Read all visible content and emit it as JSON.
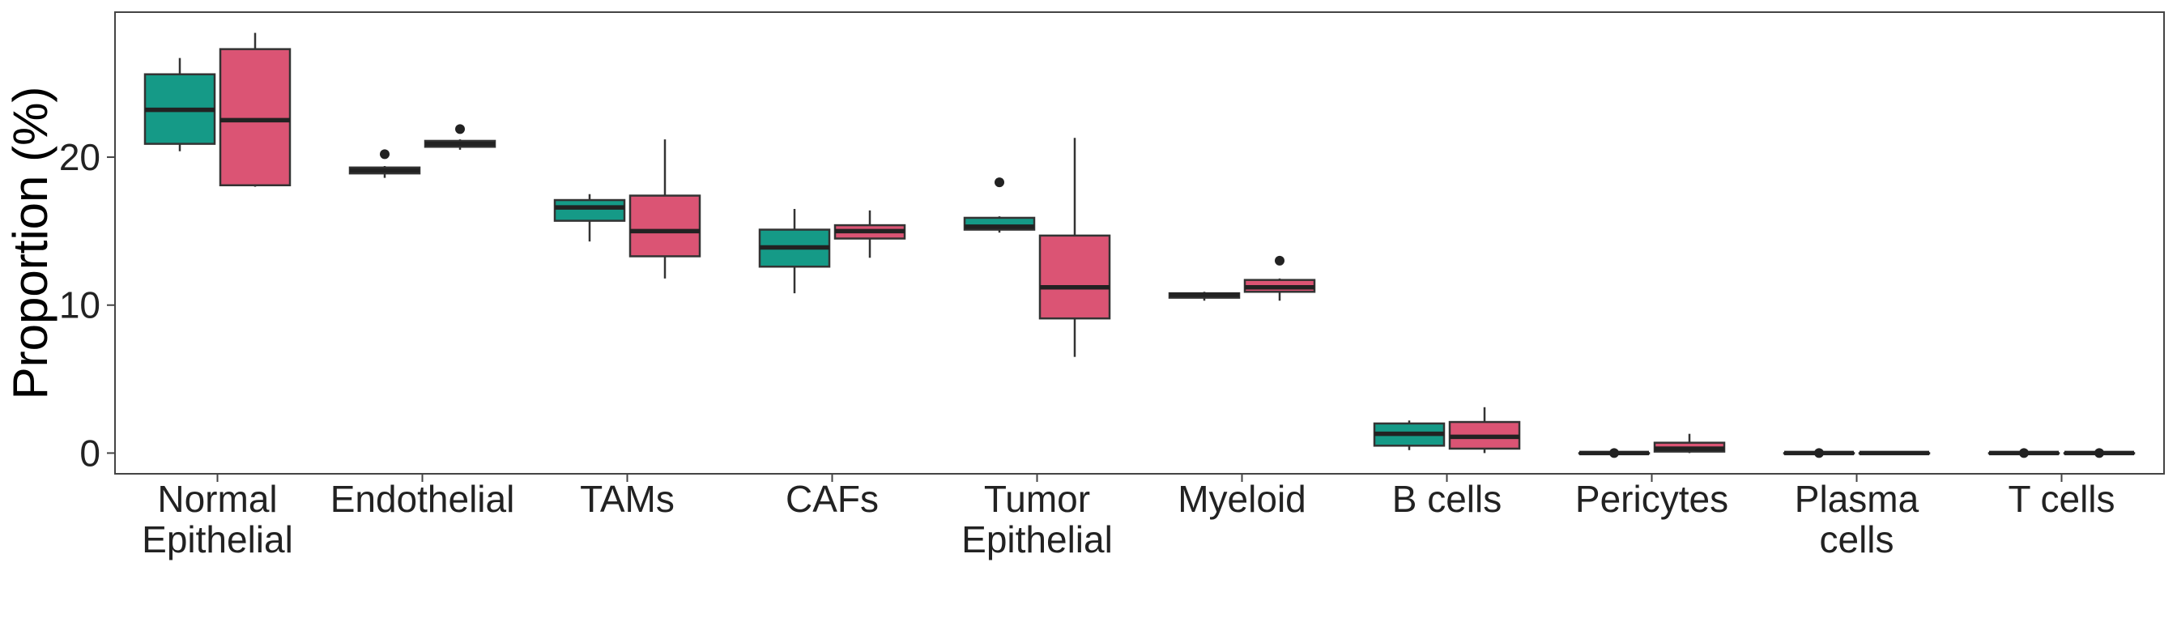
{
  "chart_data": {
    "type": "boxplot",
    "title": "",
    "xlabel": "",
    "ylabel": "Proportion (%)",
    "ylim": [
      -1.4,
      29.8
    ],
    "yticks": [
      0,
      10,
      20
    ],
    "grid": false,
    "legend": "none",
    "categories": [
      [
        "Normal",
        "Epithelial"
      ],
      [
        "Endothelial"
      ],
      [
        "TAMs"
      ],
      [
        "CAFs"
      ],
      [
        "Tumor",
        "Epithelial"
      ],
      [
        "Myeloid"
      ],
      [
        "B cells"
      ],
      [
        "Pericytes"
      ],
      [
        "Plasma",
        "cells"
      ],
      [
        "T cells"
      ]
    ],
    "series": [
      {
        "color": "#159a87",
        "boxes": [
          {
            "min": 20.4,
            "q1": 20.9,
            "median": 23.2,
            "q3": 25.6,
            "max": 26.7,
            "outliers": []
          },
          {
            "min": 18.6,
            "q1": 18.9,
            "median": 19.1,
            "q3": 19.3,
            "max": 19.4,
            "outliers": [
              20.2
            ]
          },
          {
            "min": 14.3,
            "q1": 15.7,
            "median": 16.6,
            "q3": 17.1,
            "max": 17.5,
            "outliers": []
          },
          {
            "min": 10.8,
            "q1": 12.6,
            "median": 13.9,
            "q3": 15.1,
            "max": 16.5,
            "outliers": []
          },
          {
            "min": 14.9,
            "q1": 15.1,
            "median": 15.3,
            "q3": 15.9,
            "max": 16.0,
            "outliers": [
              18.3
            ]
          },
          {
            "min": 10.3,
            "q1": 10.5,
            "median": 10.7,
            "q3": 10.8,
            "max": 10.9,
            "outliers": []
          },
          {
            "min": 0.2,
            "q1": 0.5,
            "median": 1.3,
            "q3": 2.0,
            "max": 2.2,
            "outliers": []
          },
          {
            "min": 0.0,
            "q1": 0.0,
            "median": 0.0,
            "q3": 0.0,
            "max": 0.0,
            "outliers": [
              0.0
            ]
          },
          {
            "min": 0.0,
            "q1": 0.0,
            "median": 0.0,
            "q3": 0.0,
            "max": 0.0,
            "outliers": [
              0.0
            ]
          },
          {
            "min": 0.0,
            "q1": 0.0,
            "median": 0.0,
            "q3": 0.0,
            "max": 0.0,
            "outliers": [
              0.0
            ]
          }
        ]
      },
      {
        "color": "#db5474",
        "boxes": [
          {
            "min": 18.0,
            "q1": 18.1,
            "median": 22.5,
            "q3": 27.3,
            "max": 28.4,
            "outliers": []
          },
          {
            "min": 20.5,
            "q1": 20.7,
            "median": 20.9,
            "q3": 21.1,
            "max": 21.2,
            "outliers": [
              21.9
            ]
          },
          {
            "min": 11.8,
            "q1": 13.3,
            "median": 15.0,
            "q3": 17.4,
            "max": 21.2,
            "outliers": []
          },
          {
            "min": 13.2,
            "q1": 14.5,
            "median": 15.0,
            "q3": 15.4,
            "max": 16.4,
            "outliers": []
          },
          {
            "min": 6.5,
            "q1": 9.1,
            "median": 11.2,
            "q3": 14.7,
            "max": 21.3,
            "outliers": []
          },
          {
            "min": 10.3,
            "q1": 10.9,
            "median": 11.2,
            "q3": 11.7,
            "max": 11.8,
            "outliers": [
              13.0
            ]
          },
          {
            "min": 0.0,
            "q1": 0.3,
            "median": 1.1,
            "q3": 2.1,
            "max": 3.1,
            "outliers": []
          },
          {
            "min": 0.0,
            "q1": 0.1,
            "median": 0.3,
            "q3": 0.7,
            "max": 1.3,
            "outliers": []
          },
          {
            "min": 0.0,
            "q1": 0.0,
            "median": 0.0,
            "q3": 0.0,
            "max": 0.0,
            "outliers": []
          },
          {
            "min": 0.0,
            "q1": 0.0,
            "median": 0.0,
            "q3": 0.0,
            "max": 0.0,
            "outliers": [
              0.0
            ]
          }
        ]
      }
    ]
  }
}
